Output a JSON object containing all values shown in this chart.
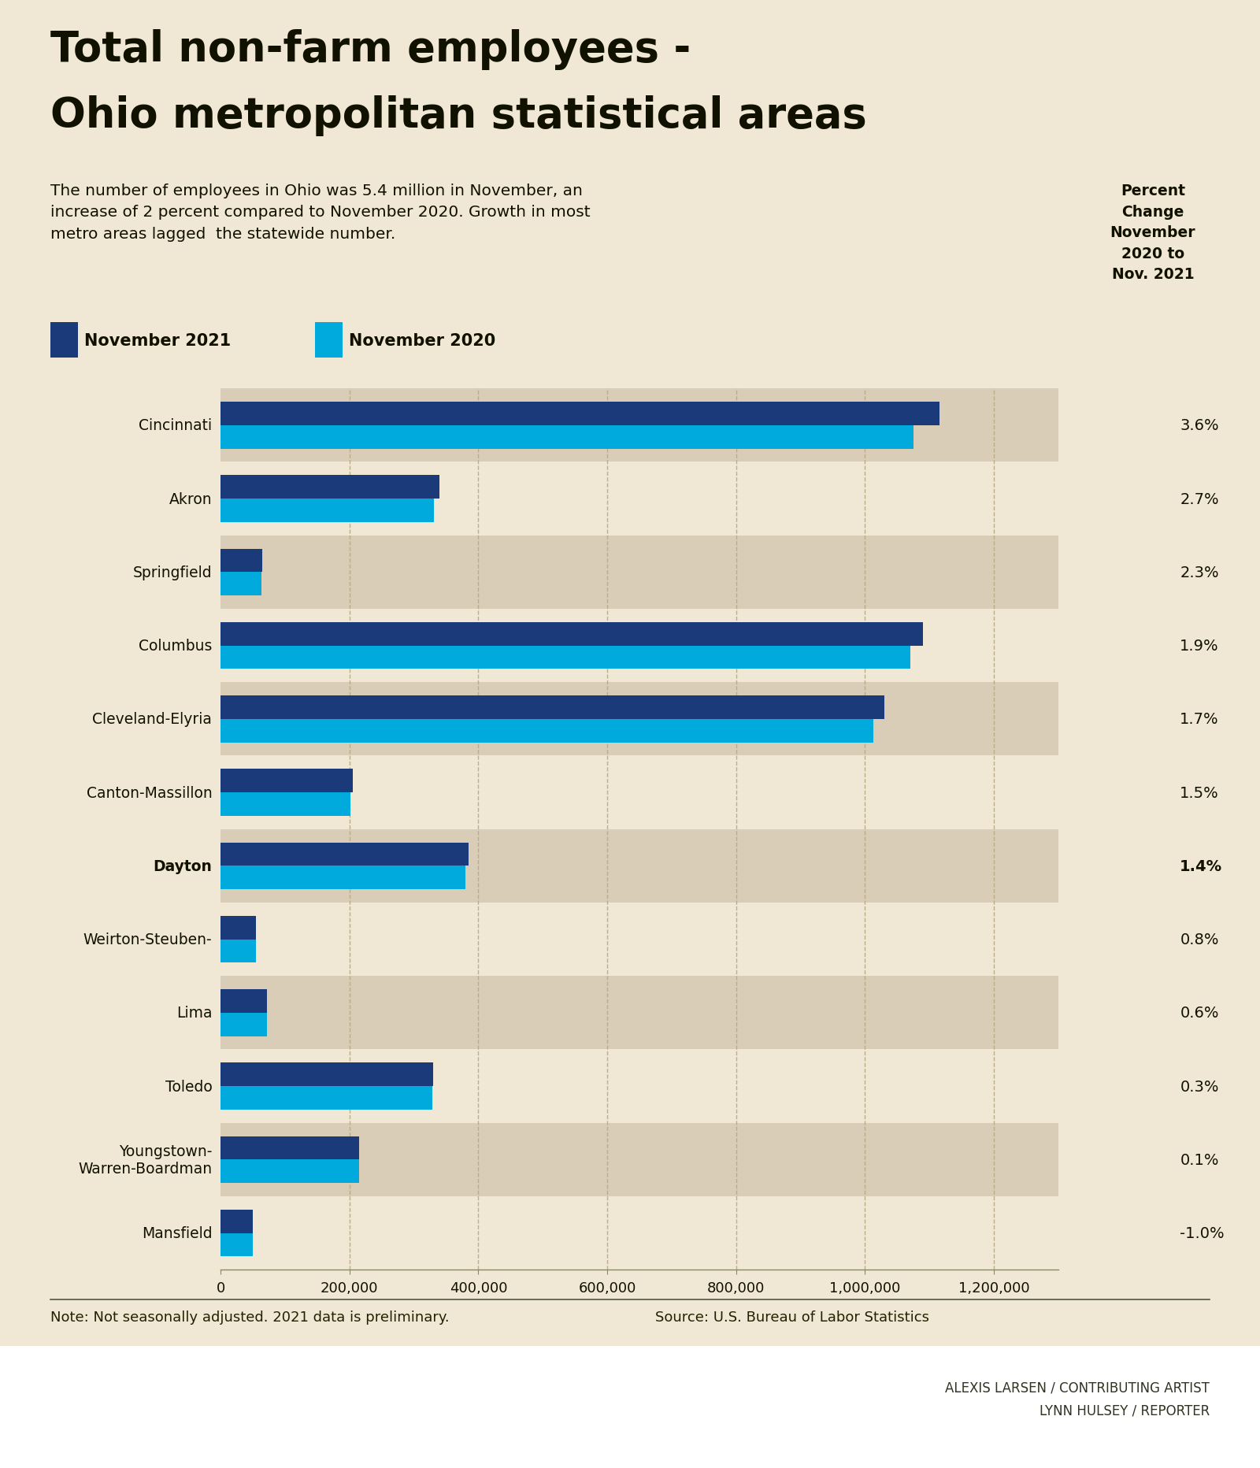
{
  "title_line1": "Total non-farm employees -",
  "title_line2": "Ohio metropolitan statistical areas",
  "subtitle": "The number of employees in Ohio was 5.4 million in November, an\nincrease of 2 percent compared to November 2020. Growth in most\nmetro areas lagged  the statewide number.",
  "pct_change_header": "Percent\nChange\nNovember\n2020 to\nNov. 2021",
  "legend_2021": "November 2021",
  "legend_2020": "November 2020",
  "categories": [
    "Cincinnati",
    "Akron",
    "Springfield",
    "Columbus",
    "Cleveland-Elyria",
    "Canton-Massillon",
    "Dayton",
    "Weirton-Steuben-",
    "Lima",
    "Toledo",
    "Youngstown-\nWarren-Boardman",
    "Mansfield"
  ],
  "bold_categories": [
    "Dayton"
  ],
  "values_2021": [
    1115000,
    340000,
    65000,
    1090000,
    1030000,
    205000,
    385000,
    55000,
    72000,
    330000,
    215000,
    50000
  ],
  "values_2020": [
    1075000,
    331000,
    63500,
    1070000,
    1013000,
    202000,
    380000,
    54600,
    71600,
    329000,
    214800,
    50500
  ],
  "pct_changes": [
    "3.6%",
    "2.7%",
    "2.3%",
    "1.9%",
    "1.7%",
    "1.5%",
    "1.4%",
    "0.8%",
    "0.6%",
    "0.3%",
    "0.1%",
    "-1.0%"
  ],
  "bold_pct": [
    "1.4%"
  ],
  "color_2021": "#1a3a7a",
  "color_2020": "#00aadd",
  "fig_bg": "#f0e8d5",
  "row_bg_shaded": "#d9cdb8",
  "row_bg_light": "#f0e8d5",
  "shaded_rows": [
    0,
    2,
    4,
    6,
    8,
    10
  ],
  "xlim": [
    0,
    1300000
  ],
  "xticks": [
    0,
    200000,
    400000,
    600000,
    800000,
    1000000,
    1200000
  ],
  "xtick_labels": [
    "0",
    "200,000",
    "400,000",
    "600,000",
    "800,000",
    "1,000,000",
    "1,200,000"
  ],
  "note": "Note: Not seasonally adjusted. 2021 data is preliminary.",
  "source": "Source: U.S. Bureau of Labor Statistics",
  "credit": "ALEXIS LARSEN / CONTRIBUTING ARTIST\nLYNN HULSEY / REPORTER"
}
